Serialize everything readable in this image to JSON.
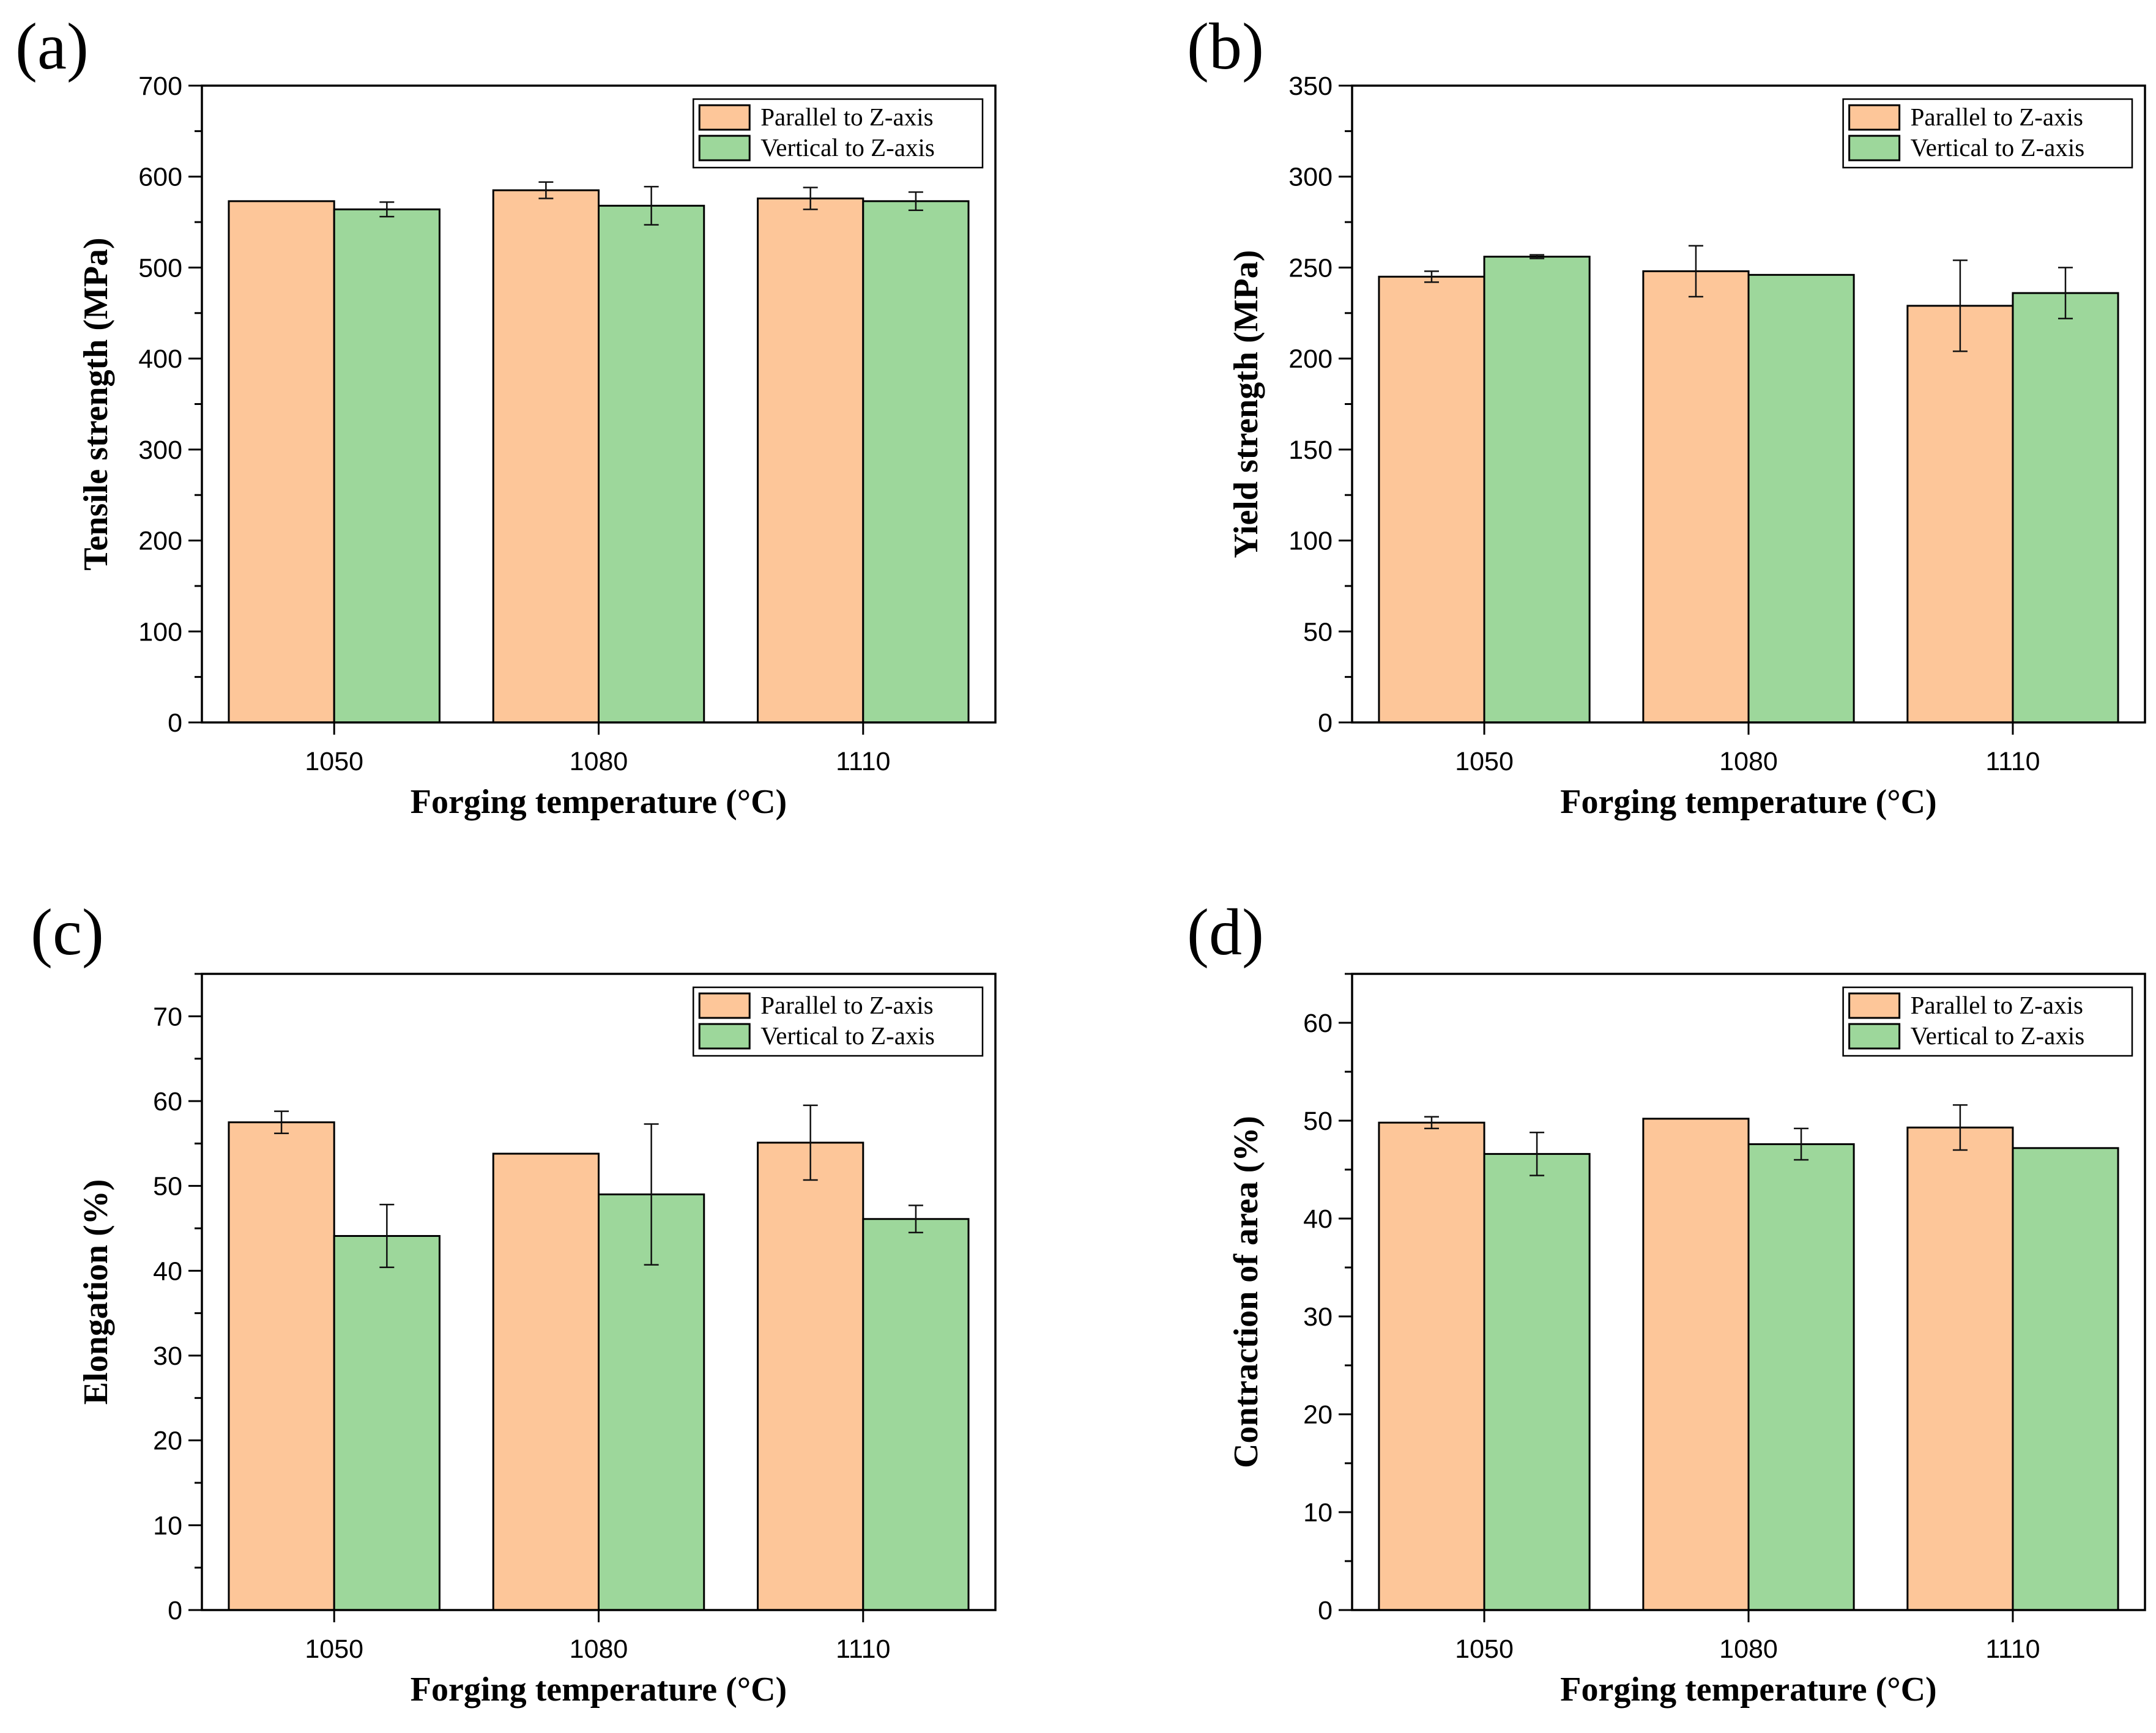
{
  "figure": {
    "colors": {
      "parallel": "#FDC699",
      "vertical": "#9DD79B",
      "axis": "#000000"
    },
    "series_names": [
      "Parallel to Z-axis",
      "Vertical to Z-axis"
    ]
  },
  "chart_data": [
    {
      "panel": "(a)",
      "type": "bar",
      "title": "",
      "xlabel": "Forging temperature (°C)",
      "ylabel": "Tensile strength (MPa)",
      "categories": [
        "1050",
        "1080",
        "1110"
      ],
      "ylim": [
        0,
        700
      ],
      "ymajor": 100,
      "yticks": [
        "0",
        "100",
        "200",
        "300",
        "400",
        "500",
        "600",
        "700"
      ],
      "legend_position": "top-right",
      "series": [
        {
          "name": "Parallel to Z-axis",
          "values": [
            573,
            585,
            576
          ],
          "errors": [
            0,
            9,
            12
          ]
        },
        {
          "name": "Vertical to Z-axis",
          "values": [
            564,
            568,
            573
          ],
          "errors": [
            8,
            21,
            10
          ]
        }
      ]
    },
    {
      "panel": "(b)",
      "type": "bar",
      "title": "",
      "xlabel": "Forging temperature (°C)",
      "ylabel": "Yield strength (MPa)",
      "categories": [
        "1050",
        "1080",
        "1110"
      ],
      "ylim": [
        0,
        350
      ],
      "ymajor": 50,
      "yticks": [
        "0",
        "50",
        "100",
        "150",
        "200",
        "250",
        "300",
        "350"
      ],
      "legend_position": "top-right",
      "series": [
        {
          "name": "Parallel to Z-axis",
          "values": [
            245,
            248,
            229
          ],
          "errors": [
            3,
            14,
            25
          ]
        },
        {
          "name": "Vertical to Z-axis",
          "values": [
            256,
            246,
            236
          ],
          "errors": [
            1,
            0,
            14
          ]
        }
      ]
    },
    {
      "panel": "(c)",
      "type": "bar",
      "title": "",
      "xlabel": "Forging temperature (°C)",
      "ylabel": "Elongation (%)",
      "categories": [
        "1050",
        "1080",
        "1110"
      ],
      "ylim": [
        0,
        75
      ],
      "ymajor": 10,
      "yticks": [
        "0",
        "10",
        "20",
        "30",
        "40",
        "50",
        "60",
        "70"
      ],
      "legend_position": "top-right",
      "series": [
        {
          "name": "Parallel to Z-axis",
          "values": [
            57.5,
            53.8,
            55.1
          ],
          "errors": [
            1.3,
            0,
            4.4
          ]
        },
        {
          "name": "Vertical to Z-axis",
          "values": [
            44.1,
            49.0,
            46.1
          ],
          "errors": [
            3.7,
            8.3,
            1.6
          ]
        }
      ]
    },
    {
      "panel": "(d)",
      "type": "bar",
      "title": "",
      "xlabel": "Forging temperature (°C)",
      "ylabel": "Contraction of area (%)",
      "categories": [
        "1050",
        "1080",
        "1110"
      ],
      "ylim": [
        0,
        65
      ],
      "ymajor": 10,
      "yticks": [
        "0",
        "10",
        "20",
        "30",
        "40",
        "50",
        "60"
      ],
      "legend_position": "top-right",
      "series": [
        {
          "name": "Parallel to Z-axis",
          "values": [
            49.8,
            50.2,
            49.3
          ],
          "errors": [
            0.6,
            0,
            2.3
          ]
        },
        {
          "name": "Vertical to Z-axis",
          "values": [
            46.6,
            47.6,
            47.2
          ],
          "errors": [
            2.2,
            1.6,
            0
          ]
        }
      ]
    }
  ]
}
